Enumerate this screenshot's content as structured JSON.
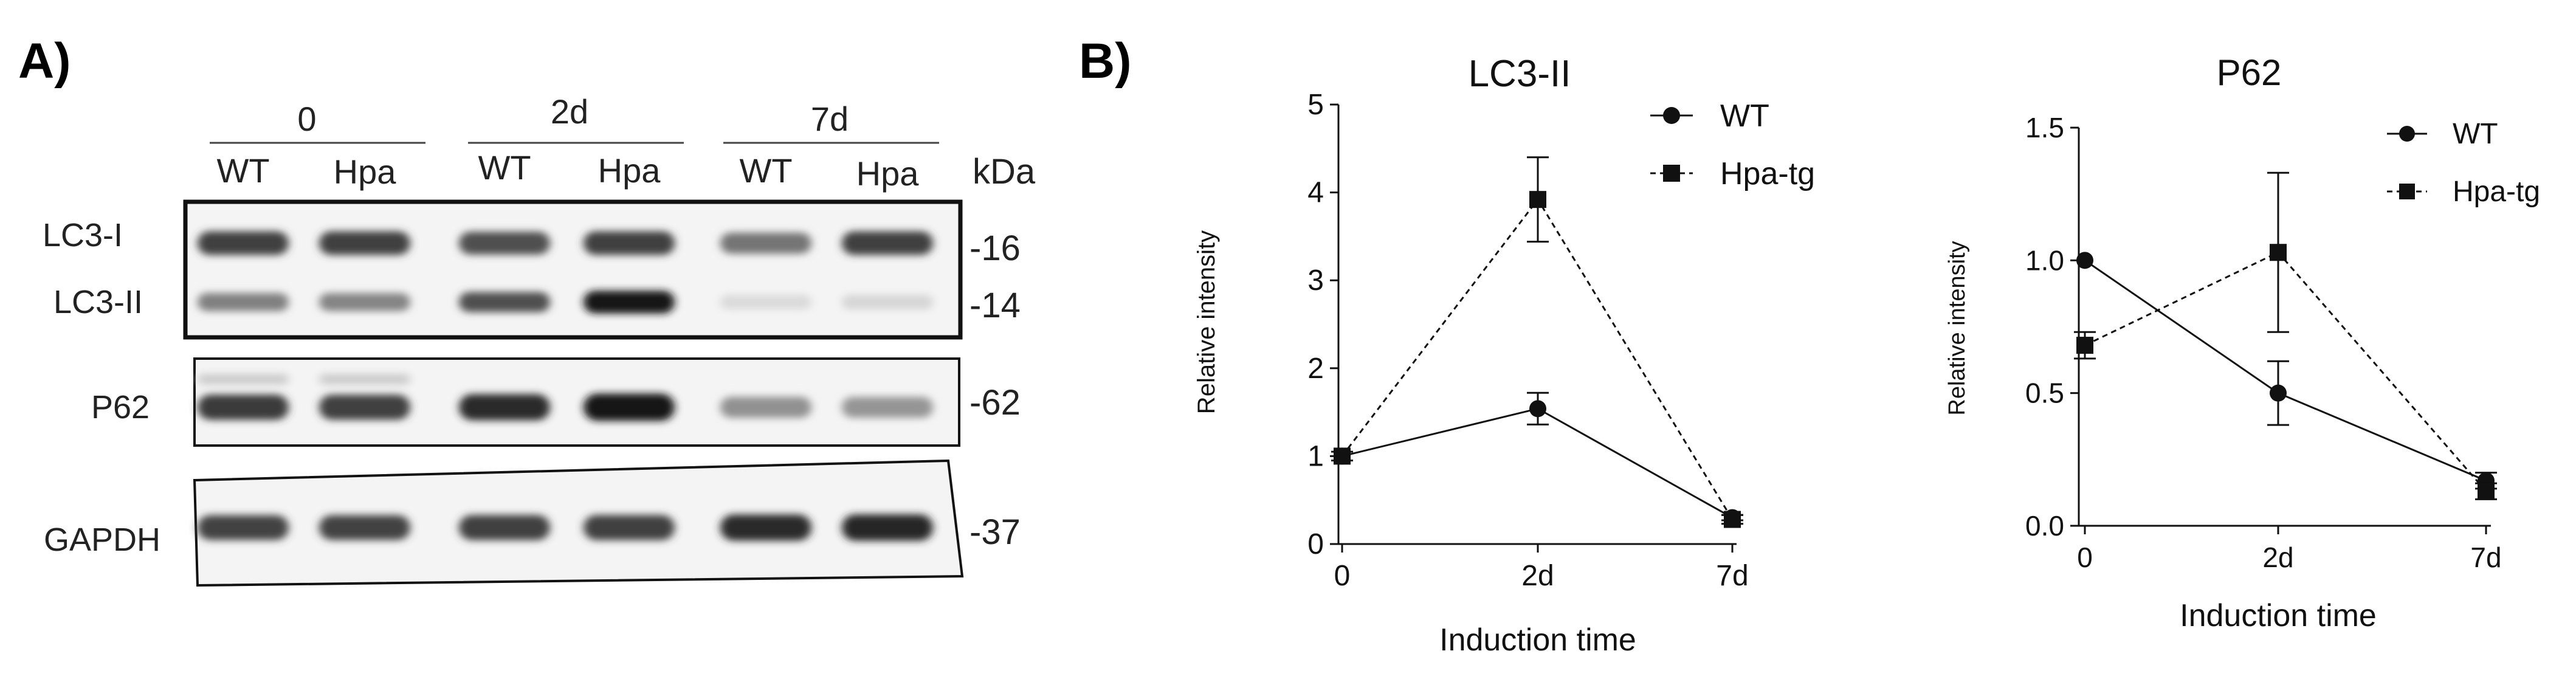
{
  "figure": {
    "panel_a_label": "A)",
    "panel_b_label": "B)"
  },
  "blot": {
    "time_groups": [
      "0",
      "2d",
      "7d"
    ],
    "lane_labels": [
      "WT",
      "Hpa",
      "WT",
      "Hpa",
      "WT",
      "Hpa"
    ],
    "kda_label": "kDa",
    "row_labels": [
      "LC3-I",
      "LC3-II",
      "P62",
      "GAPDH"
    ],
    "markers": [
      "-16",
      "-14",
      "-62",
      "-37"
    ],
    "band_intensity": {
      "LC3-I": [
        0.8,
        0.8,
        0.72,
        0.8,
        0.55,
        0.8
      ],
      "LC3-II": [
        0.5,
        0.48,
        0.72,
        1.0,
        0.08,
        0.1
      ],
      "P62": [
        0.82,
        0.8,
        0.9,
        1.0,
        0.42,
        0.4
      ],
      "GAPDH": [
        0.78,
        0.78,
        0.8,
        0.8,
        0.9,
        0.92
      ]
    }
  },
  "chart_data": [
    {
      "type": "line",
      "title": "LC3-II",
      "xlabel": "Induction time",
      "ylabel": "Relative intensity",
      "categories": [
        "0",
        "2d",
        "7d"
      ],
      "ylim": [
        0,
        5
      ],
      "yticks": [
        "0",
        "1",
        "2",
        "3",
        "4",
        "5"
      ],
      "series": [
        {
          "name": "WT",
          "marker": "circle",
          "dashed": false,
          "values": [
            1.0,
            1.54,
            0.3
          ],
          "errors": [
            0.0,
            0.18,
            0.03
          ]
        },
        {
          "name": "Hpa-tg",
          "marker": "square",
          "dashed": true,
          "values": [
            1.0,
            3.92,
            0.28
          ],
          "errors": [
            0.05,
            0.48,
            0.05
          ]
        }
      ],
      "legend": "top-right"
    },
    {
      "type": "line",
      "title": "P62",
      "xlabel": "Induction time",
      "ylabel": "Relative intensity",
      "categories": [
        "0",
        "2d",
        "7d"
      ],
      "ylim": [
        0,
        1.5
      ],
      "yticks": [
        "0.0",
        "0.5",
        "1.0",
        "1.5"
      ],
      "series": [
        {
          "name": "WT",
          "marker": "circle",
          "dashed": false,
          "values": [
            1.0,
            0.5,
            0.17
          ],
          "errors": [
            0.0,
            0.12,
            0.03
          ]
        },
        {
          "name": "Hpa-tg",
          "marker": "square",
          "dashed": true,
          "values": [
            0.68,
            1.03,
            0.13
          ],
          "errors": [
            0.05,
            0.3,
            0.03
          ]
        }
      ],
      "legend": "top-right"
    }
  ]
}
